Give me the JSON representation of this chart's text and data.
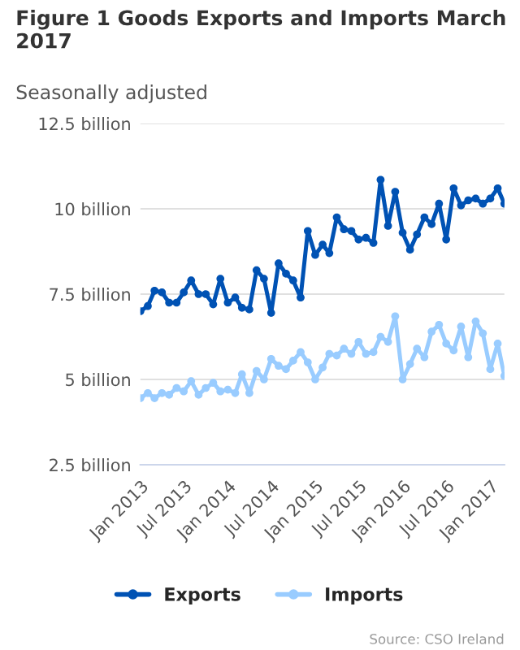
{
  "chart_data": {
    "type": "line",
    "title": "Figure 1 Goods Exports and Imports March 2017",
    "subtitle": "Seasonally adjusted",
    "x": [
      "2013-01",
      "2013-02",
      "2013-03",
      "2013-04",
      "2013-05",
      "2013-06",
      "2013-07",
      "2013-08",
      "2013-09",
      "2013-10",
      "2013-11",
      "2013-12",
      "2014-01",
      "2014-02",
      "2014-03",
      "2014-04",
      "2014-05",
      "2014-06",
      "2014-07",
      "2014-08",
      "2014-09",
      "2014-10",
      "2014-11",
      "2014-12",
      "2015-01",
      "2015-02",
      "2015-03",
      "2015-04",
      "2015-05",
      "2015-06",
      "2015-07",
      "2015-08",
      "2015-09",
      "2015-10",
      "2015-11",
      "2015-12",
      "2016-01",
      "2016-02",
      "2016-03",
      "2016-04",
      "2016-05",
      "2016-06",
      "2016-07",
      "2016-08",
      "2016-09",
      "2016-10",
      "2016-11",
      "2016-12",
      "2017-01",
      "2017-02",
      "2017-03"
    ],
    "series": [
      {
        "name": "Exports",
        "color": "#0052b4",
        "values": [
          7.0,
          7.15,
          7.6,
          7.55,
          7.25,
          7.25,
          7.55,
          7.9,
          7.5,
          7.5,
          7.2,
          7.95,
          7.25,
          7.4,
          7.1,
          7.05,
          8.2,
          7.95,
          6.95,
          8.4,
          8.1,
          7.9,
          7.4,
          9.35,
          8.65,
          8.95,
          8.7,
          9.75,
          9.4,
          9.35,
          9.1,
          9.15,
          9.0,
          10.85,
          9.5,
          10.5,
          9.3,
          8.8,
          9.25,
          9.75,
          9.55,
          10.15,
          9.1,
          10.6,
          10.1,
          10.25,
          10.3,
          10.15,
          10.3,
          10.6,
          10.15
        ]
      },
      {
        "name": "Imports",
        "color": "#99ccff",
        "values": [
          4.45,
          4.6,
          4.45,
          4.6,
          4.55,
          4.75,
          4.65,
          4.95,
          4.55,
          4.75,
          4.9,
          4.65,
          4.7,
          4.6,
          5.15,
          4.6,
          5.25,
          5.0,
          5.6,
          5.4,
          5.3,
          5.55,
          5.8,
          5.5,
          5.0,
          5.35,
          5.75,
          5.7,
          5.9,
          5.75,
          6.1,
          5.75,
          5.8,
          6.25,
          6.1,
          6.85,
          5.0,
          5.45,
          5.9,
          5.65,
          6.4,
          6.6,
          6.05,
          5.85,
          6.55,
          5.65,
          6.7,
          6.35,
          5.3,
          6.05,
          5.1
        ]
      }
    ],
    "xlim": [
      "2013-01",
      "2017-03"
    ],
    "xticks": [
      {
        "value": "2013-01",
        "label": "Jan 2013"
      },
      {
        "value": "2013-07",
        "label": "Jul 2013"
      },
      {
        "value": "2014-01",
        "label": "Jan 2014"
      },
      {
        "value": "2014-07",
        "label": "Jul 2014"
      },
      {
        "value": "2015-01",
        "label": "Jan 2015"
      },
      {
        "value": "2015-07",
        "label": "Jul 2015"
      },
      {
        "value": "2016-01",
        "label": "Jan 2016"
      },
      {
        "value": "2016-07",
        "label": "Jul 2016"
      },
      {
        "value": "2017-01",
        "label": "Jan 2017"
      }
    ],
    "ylim": [
      2.5,
      12.5
    ],
    "yticks": [
      {
        "value": 2.5,
        "label": "2.5 billion"
      },
      {
        "value": 5,
        "label": "5 billion"
      },
      {
        "value": 7.5,
        "label": "7.5 billion"
      },
      {
        "value": 10,
        "label": "10 billion"
      },
      {
        "value": 12.5,
        "label": "12.5 billion"
      }
    ],
    "grid": "y",
    "legend": "bottom",
    "marker": "circle",
    "line_style": "solid",
    "annotations": [
      "Source: CSO Ireland"
    ]
  }
}
